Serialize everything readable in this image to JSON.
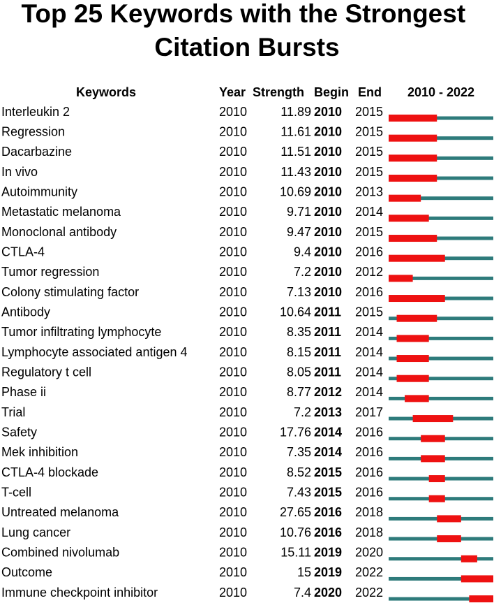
{
  "chart_data": {
    "type": "burst",
    "title": "Top 25 Keywords with the Strongest Citation Bursts",
    "columns": [
      "Keywords",
      "Year",
      "Strength",
      "Begin",
      "End"
    ],
    "timeline_label": "2010 - 2022",
    "xlim": [
      2010,
      2022
    ],
    "base_color": "#2e7b7b",
    "burst_color": "#ee1111",
    "rows": [
      {
        "keyword": "Interleukin 2",
        "year": 2010,
        "strength": 11.89,
        "begin": 2010,
        "end": 2015
      },
      {
        "keyword": "Regression",
        "year": 2010,
        "strength": 11.61,
        "begin": 2010,
        "end": 2015
      },
      {
        "keyword": "Dacarbazine",
        "year": 2010,
        "strength": 11.51,
        "begin": 2010,
        "end": 2015
      },
      {
        "keyword": "In vivo",
        "year": 2010,
        "strength": 11.43,
        "begin": 2010,
        "end": 2015
      },
      {
        "keyword": "Autoimmunity",
        "year": 2010,
        "strength": 10.69,
        "begin": 2010,
        "end": 2013
      },
      {
        "keyword": "Metastatic melanoma",
        "year": 2010,
        "strength": 9.71,
        "begin": 2010,
        "end": 2014
      },
      {
        "keyword": "Monoclonal antibody",
        "year": 2010,
        "strength": 9.47,
        "begin": 2010,
        "end": 2015
      },
      {
        "keyword": "CTLA-4",
        "year": 2010,
        "strength": 9.4,
        "begin": 2010,
        "end": 2016
      },
      {
        "keyword": "Tumor regression",
        "year": 2010,
        "strength": 7.2,
        "begin": 2010,
        "end": 2012
      },
      {
        "keyword": "Colony stimulating factor",
        "year": 2010,
        "strength": 7.13,
        "begin": 2010,
        "end": 2016
      },
      {
        "keyword": "Antibody",
        "year": 2010,
        "strength": 10.64,
        "begin": 2011,
        "end": 2015
      },
      {
        "keyword": "Tumor infiltrating lymphocyte",
        "year": 2010,
        "strength": 8.35,
        "begin": 2011,
        "end": 2014
      },
      {
        "keyword": "Lymphocyte associated antigen 4",
        "year": 2010,
        "strength": 8.15,
        "begin": 2011,
        "end": 2014
      },
      {
        "keyword": "Regulatory t cell",
        "year": 2010,
        "strength": 8.05,
        "begin": 2011,
        "end": 2014
      },
      {
        "keyword": "Phase ii",
        "year": 2010,
        "strength": 8.77,
        "begin": 2012,
        "end": 2014
      },
      {
        "keyword": "Trial",
        "year": 2010,
        "strength": 7.2,
        "begin": 2013,
        "end": 2017
      },
      {
        "keyword": "Safety",
        "year": 2010,
        "strength": 17.76,
        "begin": 2014,
        "end": 2016
      },
      {
        "keyword": "Mek inhibition",
        "year": 2010,
        "strength": 7.35,
        "begin": 2014,
        "end": 2016
      },
      {
        "keyword": "CTLA-4 blockade",
        "year": 2010,
        "strength": 8.52,
        "begin": 2015,
        "end": 2016
      },
      {
        "keyword": "T-cell",
        "year": 2010,
        "strength": 7.43,
        "begin": 2015,
        "end": 2016
      },
      {
        "keyword": "Untreated melanoma",
        "year": 2010,
        "strength": 27.65,
        "begin": 2016,
        "end": 2018
      },
      {
        "keyword": "Lung cancer",
        "year": 2010,
        "strength": 10.76,
        "begin": 2016,
        "end": 2018
      },
      {
        "keyword": "Combined nivolumab",
        "year": 2010,
        "strength": 15.11,
        "begin": 2019,
        "end": 2020
      },
      {
        "keyword": "Outcome",
        "year": 2010,
        "strength": 15,
        "begin": 2019,
        "end": 2022
      },
      {
        "keyword": "Immune checkpoint inhibitor",
        "year": 2010,
        "strength": 7.4,
        "begin": 2020,
        "end": 2022
      }
    ]
  }
}
